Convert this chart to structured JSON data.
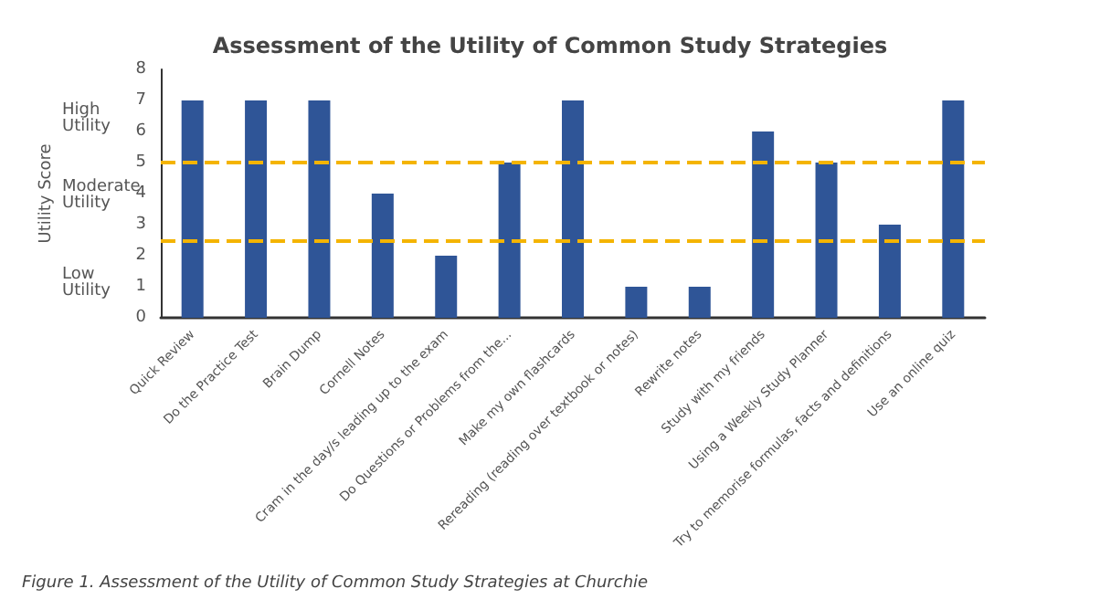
{
  "chart_data": {
    "type": "bar",
    "title": "Assessment of the Utility of Common Study Strategies",
    "ylabel": "Utility Score",
    "categories": [
      "Quick Review",
      "Do the Practice Test",
      "Brain Dump",
      "Cornell Notes",
      "Cram in the day/s leading up to the exam",
      "Do Questions or Problems from the...",
      "Make my own flashcards",
      "Rereading (reading over textbook or notes)",
      "Rewrite notes",
      "Study with my friends",
      "Using a Weekly Study Planner",
      "Try to memorise formulas, facts and definitions",
      "Use an online quiz"
    ],
    "values": [
      7,
      7,
      7,
      4,
      2,
      5,
      7,
      1,
      1,
      6,
      5,
      3,
      7
    ],
    "color": "#2f5597",
    "ylim": [
      0,
      8
    ],
    "yticks": [
      0,
      1,
      2,
      3,
      4,
      5,
      6,
      7,
      8
    ],
    "grid": false,
    "ref_lines": [
      {
        "axis": "y",
        "value": 5,
        "color": "#f4b400",
        "line_style": "dashed"
      },
      {
        "axis": "y",
        "value": 2.5,
        "color": "#f4b400",
        "line_style": "dashed"
      }
    ],
    "annotations": [
      "High Utility",
      "Moderate Utility",
      "Low Utility",
      "Figure 1. Assessment of the Utility of Common Study Strategies at Churchie"
    ]
  }
}
